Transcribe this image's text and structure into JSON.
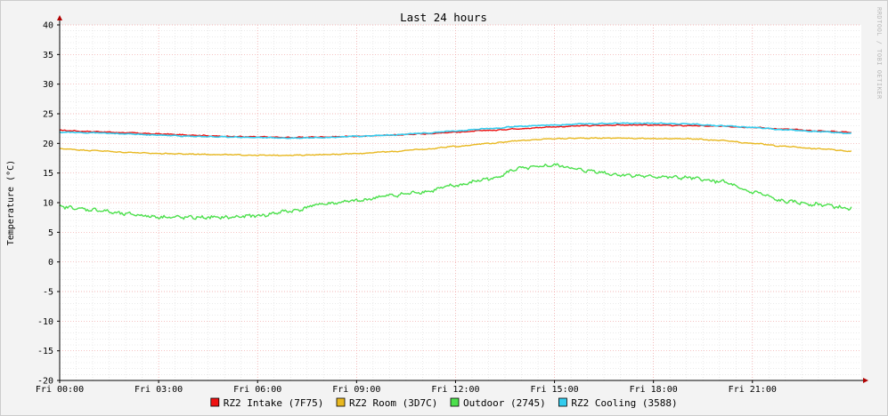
{
  "chart_data": {
    "type": "line",
    "title": "Last 24 hours",
    "ylabel": "Temperature (°C)",
    "xlabel": "",
    "watermark": "RRDTOOL / TOBI OETIKER",
    "ylim": [
      -20,
      40
    ],
    "yticks": [
      "-20",
      "-15",
      "-10",
      "-5",
      "0",
      "5",
      "10",
      "15",
      "20",
      "25",
      "30",
      "35",
      "40"
    ],
    "xlim": [
      0,
      24.3
    ],
    "xtick_hours": [
      0,
      3,
      6,
      9,
      12,
      15,
      18,
      21
    ],
    "xticks": [
      "Fri 00:00",
      "Fri 03:00",
      "Fri 06:00",
      "Fri 09:00",
      "Fri 12:00",
      "Fri 15:00",
      "Fri 18:00",
      "Fri 21:00"
    ],
    "grid": true,
    "legend_position": "bottom",
    "colors": {
      "background": "#f3f3f3",
      "plot_bg": "#ffffff",
      "minor_grid": "#dddddd",
      "major_grid": "#f0a0a0",
      "axis": "#000000",
      "arrow": "#b00000"
    },
    "series": [
      {
        "name": "RZ2 Intake (7F75)",
        "color": "#ee1111",
        "x": [
          0,
          1,
          2,
          3,
          4,
          5,
          6,
          7,
          8,
          9,
          10,
          11,
          12,
          13,
          14,
          15,
          16,
          17,
          18,
          19,
          20,
          21,
          22,
          23,
          24
        ],
        "values": [
          22.2,
          22.0,
          21.8,
          21.6,
          21.4,
          21.2,
          21.1,
          21.0,
          21.1,
          21.2,
          21.4,
          21.6,
          21.9,
          22.2,
          22.5,
          22.8,
          23.0,
          23.1,
          23.1,
          23.0,
          22.9,
          22.7,
          22.4,
          22.1,
          21.9
        ]
      },
      {
        "name": "RZ2 Room (3D7C)",
        "color": "#e8b820",
        "x": [
          0,
          1,
          2,
          3,
          4,
          5,
          6,
          7,
          8,
          9,
          10,
          11,
          12,
          13,
          14,
          15,
          16,
          17,
          18,
          19,
          20,
          21,
          22,
          23,
          24
        ],
        "values": [
          19.1,
          18.8,
          18.5,
          18.3,
          18.2,
          18.1,
          18.0,
          18.0,
          18.1,
          18.3,
          18.6,
          19.0,
          19.5,
          20.0,
          20.5,
          20.8,
          20.9,
          20.9,
          20.8,
          20.8,
          20.5,
          20.0,
          19.5,
          19.1,
          18.7
        ]
      },
      {
        "name": "Outdoor (2745)",
        "color": "#4ce04c",
        "x": [
          0,
          1,
          2,
          3,
          4,
          5,
          6,
          7,
          8,
          9,
          10,
          11,
          12,
          13,
          14,
          15,
          16,
          17,
          18,
          19,
          20,
          21,
          22,
          23,
          24
        ],
        "values": [
          9.3,
          8.8,
          8.1,
          7.6,
          7.5,
          7.5,
          7.8,
          8.6,
          9.8,
          10.3,
          11.2,
          11.8,
          12.9,
          14.0,
          15.8,
          16.3,
          15.4,
          14.7,
          14.4,
          14.2,
          13.6,
          11.8,
          10.2,
          9.7,
          9.0
        ]
      },
      {
        "name": "RZ2 Cooling (3588)",
        "color": "#33ccee",
        "x": [
          0,
          1,
          2,
          3,
          4,
          5,
          6,
          7,
          8,
          9,
          10,
          11,
          12,
          13,
          14,
          15,
          16,
          17,
          18,
          19,
          20,
          21,
          22,
          23,
          24
        ],
        "values": [
          21.9,
          21.8,
          21.6,
          21.4,
          21.2,
          21.1,
          21.0,
          20.9,
          21.0,
          21.2,
          21.4,
          21.7,
          22.1,
          22.5,
          22.9,
          23.1,
          23.3,
          23.4,
          23.4,
          23.3,
          23.0,
          22.7,
          22.3,
          22.0,
          21.7
        ]
      }
    ]
  }
}
